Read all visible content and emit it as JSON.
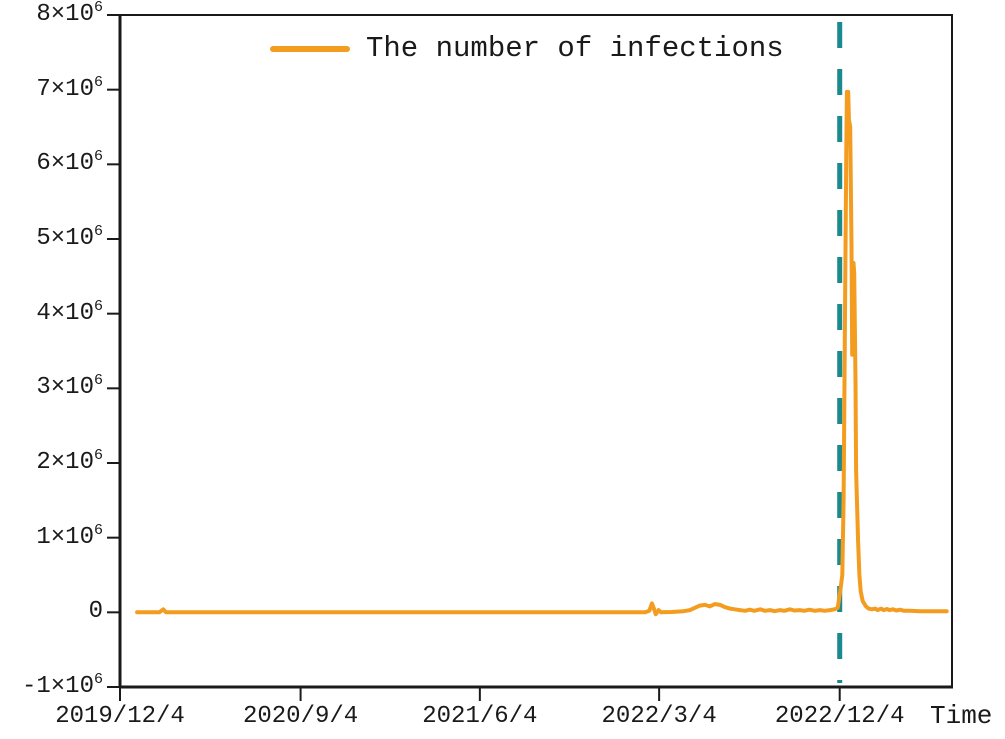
{
  "legend": {
    "label": "The number of infections"
  },
  "colors": {
    "series_orange": "#f39c1f",
    "marker_teal": "#1a8a8e",
    "axis": "#1a1a1a",
    "background": "#ffffff"
  },
  "chart_data": {
    "type": "line",
    "title": "",
    "xlabel": "Time",
    "ylabel": "",
    "grid": false,
    "legend_position": "top-center-inside",
    "x_axis": {
      "range_days": [
        0,
        1267
      ],
      "ticks": [
        {
          "day": 0,
          "label": "2019/12/4"
        },
        {
          "day": 275,
          "label": "2020/9/4"
        },
        {
          "day": 548,
          "label": "2021/6/4"
        },
        {
          "day": 821,
          "label": "2022/3/4"
        },
        {
          "day": 1096,
          "label": "2022/12/4"
        }
      ]
    },
    "y_axis": {
      "range_millions": [
        -1,
        8
      ],
      "ticks": [
        {
          "v": 8,
          "m": "8",
          "e": "6"
        },
        {
          "v": 7,
          "m": "7",
          "e": "6"
        },
        {
          "v": 6,
          "m": "6",
          "e": "6"
        },
        {
          "v": 5,
          "m": "5",
          "e": "6"
        },
        {
          "v": 4,
          "m": "4",
          "e": "6"
        },
        {
          "v": 3,
          "m": "3",
          "e": "6"
        },
        {
          "v": 2,
          "m": "2",
          "e": "6"
        },
        {
          "v": 1,
          "m": "1",
          "e": "6"
        },
        {
          "v": 0,
          "m": "0",
          "e": ""
        },
        {
          "v": -1,
          "m": "-1",
          "e": "6"
        }
      ]
    },
    "marker_line": {
      "day": 1096,
      "at_label": "2022/12/4",
      "style": "dashed",
      "color": "#1a8a8e"
    },
    "series": [
      {
        "name": "The number of infections",
        "color": "#f39c1f",
        "points_day_value_millions": [
          [
            26,
            0
          ],
          [
            60,
            0
          ],
          [
            66,
            0.04
          ],
          [
            70,
            0
          ],
          [
            200,
            0
          ],
          [
            400,
            0
          ],
          [
            600,
            0
          ],
          [
            750,
            0
          ],
          [
            800,
            0
          ],
          [
            806,
            0.02
          ],
          [
            810,
            0.12
          ],
          [
            813,
            0.05
          ],
          [
            816,
            -0.025
          ],
          [
            820,
            0.03
          ],
          [
            824,
            0
          ],
          [
            840,
            0.005
          ],
          [
            858,
            0.015
          ],
          [
            868,
            0.03
          ],
          [
            875,
            0.06
          ],
          [
            883,
            0.09
          ],
          [
            891,
            0.1
          ],
          [
            898,
            0.08
          ],
          [
            906,
            0.11
          ],
          [
            914,
            0.1
          ],
          [
            921,
            0.07
          ],
          [
            929,
            0.05
          ],
          [
            936,
            0.04
          ],
          [
            944,
            0.03
          ],
          [
            952,
            0.02
          ],
          [
            959,
            0.035
          ],
          [
            966,
            0.02
          ],
          [
            975,
            0.04
          ],
          [
            982,
            0.02
          ],
          [
            990,
            0.03
          ],
          [
            997,
            0.015
          ],
          [
            1005,
            0.03
          ],
          [
            1012,
            0.02
          ],
          [
            1020,
            0.04
          ],
          [
            1027,
            0.025
          ],
          [
            1035,
            0.03
          ],
          [
            1042,
            0.02
          ],
          [
            1050,
            0.035
          ],
          [
            1058,
            0.02
          ],
          [
            1066,
            0.03
          ],
          [
            1073,
            0.02
          ],
          [
            1081,
            0.03
          ],
          [
            1088,
            0.04
          ],
          [
            1093,
            0.06
          ],
          [
            1097,
            0.3
          ],
          [
            1100,
            0.5
          ],
          [
            1102,
            1.5
          ],
          [
            1104,
            4.0
          ],
          [
            1106,
            6.2
          ],
          [
            1107,
            6.97
          ],
          [
            1109,
            6.97
          ],
          [
            1110,
            6.6
          ],
          [
            1112,
            6.5
          ],
          [
            1114,
            4.9
          ],
          [
            1115,
            3.45
          ],
          [
            1117,
            4.68
          ],
          [
            1118,
            4.55
          ],
          [
            1120,
            3.1
          ],
          [
            1121,
            1.9
          ],
          [
            1124,
            0.95
          ],
          [
            1126,
            0.5
          ],
          [
            1128,
            0.28
          ],
          [
            1131,
            0.15
          ],
          [
            1136,
            0.08
          ],
          [
            1140,
            0.05
          ],
          [
            1145,
            0.04
          ],
          [
            1150,
            0.05
          ],
          [
            1154,
            0.03
          ],
          [
            1159,
            0.05
          ],
          [
            1163,
            0.03
          ],
          [
            1168,
            0.045
          ],
          [
            1172,
            0.03
          ],
          [
            1177,
            0.04
          ],
          [
            1182,
            0.025
          ],
          [
            1188,
            0.035
          ],
          [
            1194,
            0.02
          ],
          [
            1203,
            0.02
          ],
          [
            1218,
            0.015
          ],
          [
            1241,
            0.015
          ],
          [
            1259,
            0.015
          ]
        ]
      }
    ]
  }
}
